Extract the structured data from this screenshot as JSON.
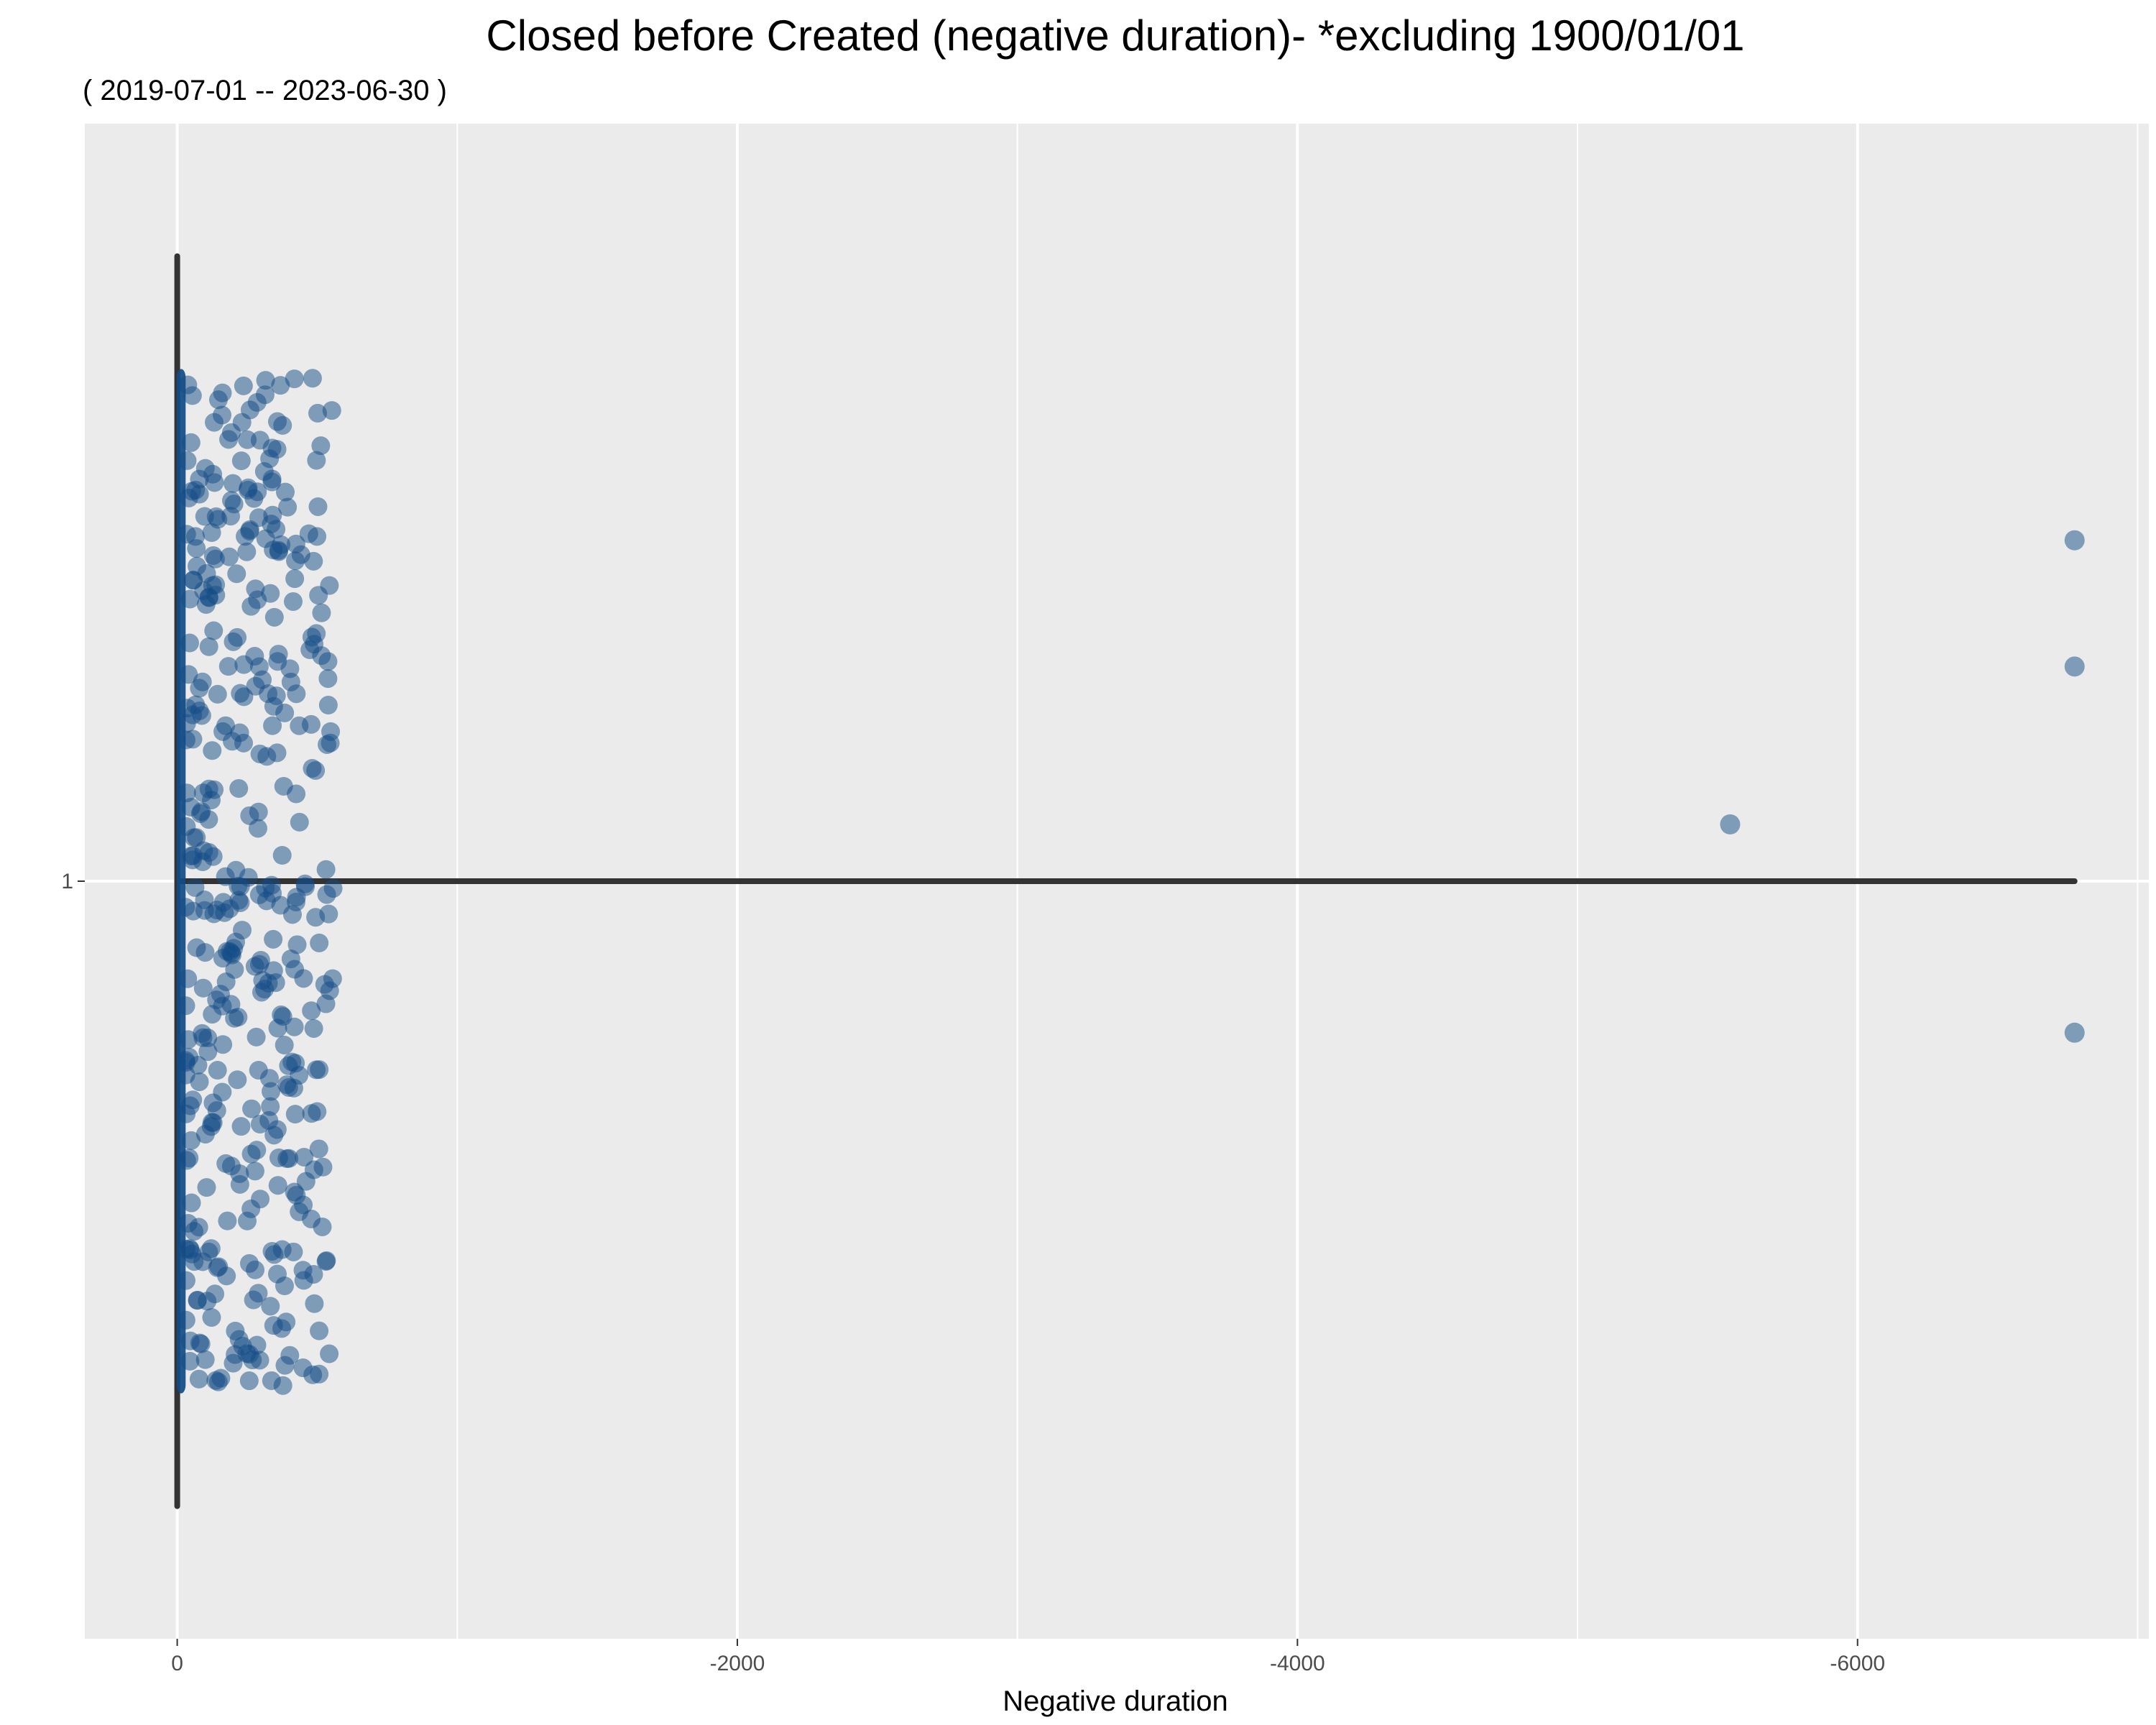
{
  "chart_data": {
    "type": "scatter",
    "title": "Closed before Created (negative duration)- *excluding 1900/01/01",
    "subtitle": "( 2019-07-01 -- 2023-06-30 )",
    "xlabel": "Negative duration",
    "ylabel": "",
    "x_reversed": true,
    "xlim": [
      330,
      -7040
    ],
    "x_ticks": [
      0,
      -2000,
      -4000,
      -6000
    ],
    "x_tick_labels": [
      "0",
      "-2000",
      "-4000",
      "-6000"
    ],
    "x_minor_ticks": [
      -1000,
      -3000,
      -5000,
      -7000
    ],
    "ylim": [
      0.4,
      1.6
    ],
    "y_ticks": [
      1
    ],
    "y_tick_labels": [
      "1"
    ],
    "grid": true,
    "background": "#ebebeb",
    "grid_color": "#ffffff",
    "point_color": "#114b86",
    "point_alpha": 0.5,
    "box_color": "#333333",
    "boxplot": {
      "position": 1,
      "whisker_min": 0,
      "whisker_max": -6775,
      "box_halfheight": 0.375
    },
    "dense_band": {
      "x_min": 2,
      "x_max": -30,
      "y_min": 0.6,
      "y_max": 1.4
    },
    "scatter_cloud": {
      "x_min": -30,
      "x_max": -560,
      "y_min": 0.6,
      "y_max": 1.4,
      "count": 420
    },
    "outliers": [
      {
        "x": -6775,
        "y": 1.27
      },
      {
        "x": -6775,
        "y": 1.17
      },
      {
        "x": -5545,
        "y": 1.045
      },
      {
        "x": -6775,
        "y": 0.88
      }
    ]
  }
}
